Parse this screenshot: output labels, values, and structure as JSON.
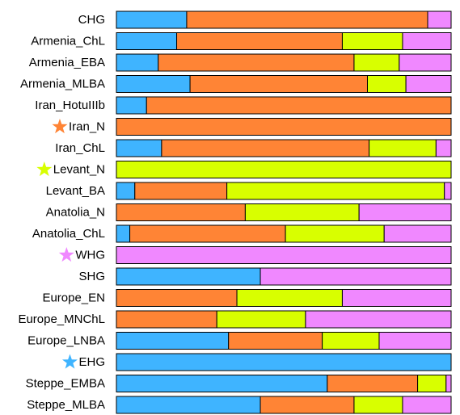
{
  "chart_data": {
    "type": "bar",
    "orientation": "horizontal",
    "stacked": true,
    "normalized": true,
    "xlim": [
      0,
      1
    ],
    "grid": false,
    "legend": "none",
    "categories": [
      "CHG",
      "Armenia_ChL",
      "Armenia_EBA",
      "Armenia_MLBA",
      "Iran_HotuIIIb",
      "Iran_N",
      "Iran_ChL",
      "Levant_N",
      "Levant_BA",
      "Anatolia_N",
      "Anatolia_ChL",
      "WHG",
      "SHG",
      "Europe_EN",
      "Europe_MNChL",
      "Europe_LNBA",
      "EHG",
      "Steppe_EMBA",
      "Steppe_MLBA"
    ],
    "series": [
      {
        "color": "#3FB4FF",
        "values": [
          0.21,
          0.18,
          0.125,
          0.22,
          0.09,
          0,
          0.135,
          0,
          0.055,
          0,
          0.04,
          0,
          0.43,
          0,
          0,
          0.335,
          1.0,
          0.63,
          0.43
        ]
      },
      {
        "color": "#FF8435",
        "values": [
          0.72,
          0.495,
          0.585,
          0.53,
          0.91,
          1.0,
          0.62,
          0,
          0.275,
          0.385,
          0.465,
          0,
          0,
          0.36,
          0.3,
          0.28,
          0,
          0.27,
          0.28
        ]
      },
      {
        "color": "#D8FF00",
        "values": [
          0,
          0.18,
          0.135,
          0.115,
          0,
          0,
          0.2,
          1.0,
          0.65,
          0.34,
          0.295,
          0,
          0,
          0.315,
          0.265,
          0.17,
          0,
          0.085,
          0.145
        ]
      },
      {
        "color": "#F088FF",
        "values": [
          0.07,
          0.145,
          0.155,
          0.135,
          0,
          0,
          0.045,
          0,
          0.02,
          0.275,
          0.2,
          1.0,
          0.57,
          0.325,
          0.435,
          0.215,
          0,
          0.015,
          0.145
        ]
      }
    ],
    "markers": [
      {
        "category": "Iran_N",
        "shape": "star",
        "color": "#FF8435"
      },
      {
        "category": "Levant_N",
        "shape": "star",
        "color": "#D8FF00"
      },
      {
        "category": "WHG",
        "shape": "star",
        "color": "#F088FF"
      },
      {
        "category": "EHG",
        "shape": "star",
        "color": "#3FB4FF"
      }
    ]
  }
}
